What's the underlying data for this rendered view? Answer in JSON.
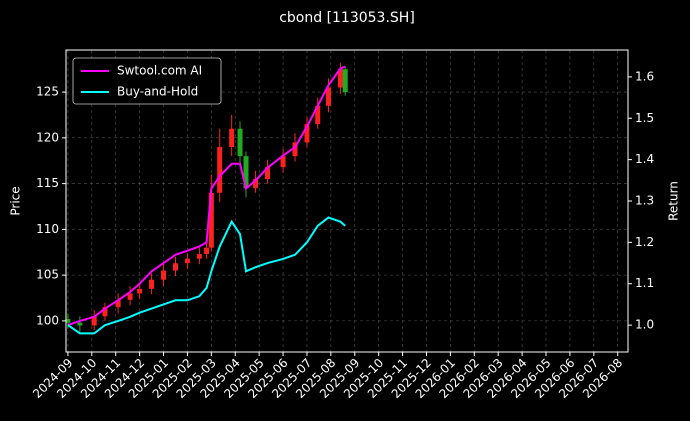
{
  "chart_data": {
    "type": "candlestick",
    "title": "cbond [113053.SH]",
    "ylabel": "Price",
    "y2label": "Return",
    "x": [
      0,
      0.5,
      1.1,
      1.55,
      2.1,
      2.6,
      3,
      3.5,
      4,
      4.5,
      5,
      5.5,
      5.8,
      6,
      6.35,
      6.85,
      7.2,
      7.45,
      7.85,
      8.35,
      9,
      9.5,
      10,
      10.45,
      10.9,
      11.4,
      11.6
    ],
    "open": [
      100.2,
      99.8,
      99.5,
      100.5,
      101.5,
      102.3,
      103,
      103.5,
      104.5,
      105.5,
      106.3,
      106.8,
      107.3,
      108,
      114,
      119,
      121,
      118,
      114.5,
      115.5,
      116.8,
      118,
      119.5,
      121.5,
      123.5,
      125.5,
      127.5
    ],
    "high": [
      100.8,
      100.5,
      101.2,
      102,
      103,
      103.8,
      104.2,
      105.2,
      106.3,
      107,
      107.4,
      108,
      108.6,
      116,
      121,
      122.5,
      121.8,
      118.5,
      116.4,
      117.6,
      118.8,
      120.5,
      122.3,
      124.4,
      126.5,
      128.2,
      127.8
    ],
    "low": [
      99.2,
      98.8,
      99,
      100,
      100.8,
      101.7,
      102.4,
      102.9,
      103.8,
      104.9,
      105.7,
      106.2,
      106.8,
      107.6,
      113,
      118,
      117,
      113.5,
      114,
      115,
      116.2,
      117.4,
      119,
      121,
      122.8,
      124.8,
      124.6
    ],
    "close": [
      99.8,
      99.5,
      100.5,
      101.5,
      102.3,
      103,
      103.5,
      104.5,
      105.5,
      106.3,
      106.8,
      107.3,
      108,
      114,
      119,
      121,
      118,
      114.5,
      115.5,
      116.8,
      118,
      119.5,
      121.5,
      123.5,
      125.5,
      127.5,
      125
    ],
    "up_color": "#ff2020",
    "down_color": "#22aa22",
    "series": [
      {
        "name": "Swtool.com AI",
        "color": "#ff00ff",
        "axis": "y2",
        "values": [
          1,
          1.01,
          1.02,
          1.04,
          1.06,
          1.08,
          1.1,
          1.13,
          1.15,
          1.17,
          1.18,
          1.19,
          1.2,
          1.33,
          1.36,
          1.39,
          1.39,
          1.33,
          1.35,
          1.38,
          1.41,
          1.43,
          1.48,
          1.53,
          1.58,
          1.62,
          1.625
        ]
      },
      {
        "name": "Buy-and-Hold",
        "color": "#00ffff",
        "axis": "y2",
        "values": [
          1,
          0.98,
          0.98,
          1,
          1.01,
          1.02,
          1.03,
          1.04,
          1.05,
          1.06,
          1.06,
          1.07,
          1.09,
          1.13,
          1.19,
          1.25,
          1.22,
          1.13,
          1.14,
          1.15,
          1.16,
          1.17,
          1.2,
          1.24,
          1.26,
          1.25,
          1.24
        ]
      }
    ],
    "xlim": [
      -0.08,
      23.43
    ],
    "xticks": [
      {
        "value": 0,
        "label": "2024-09"
      },
      {
        "value": 1,
        "label": "2024-10"
      },
      {
        "value": 2,
        "label": "2024-11"
      },
      {
        "value": 3,
        "label": "2024-12"
      },
      {
        "value": 4,
        "label": "2025-01"
      },
      {
        "value": 5,
        "label": "2025-02"
      },
      {
        "value": 6,
        "label": "2025-03"
      },
      {
        "value": 7,
        "label": "2025-04"
      },
      {
        "value": 8,
        "label": "2025-05"
      },
      {
        "value": 9,
        "label": "2025-06"
      },
      {
        "value": 10,
        "label": "2025-07"
      },
      {
        "value": 11,
        "label": "2025-08"
      },
      {
        "value": 12,
        "label": "2025-09"
      },
      {
        "value": 13,
        "label": "2025-10"
      },
      {
        "value": 14,
        "label": "2025-11"
      },
      {
        "value": 15,
        "label": "2025-12"
      },
      {
        "value": 16,
        "label": "2026-01"
      },
      {
        "value": 17,
        "label": "2026-02"
      },
      {
        "value": 18,
        "label": "2026-03"
      },
      {
        "value": 19,
        "label": "2026-04"
      },
      {
        "value": 20,
        "label": "2026-05"
      },
      {
        "value": 21,
        "label": "2026-06"
      },
      {
        "value": 22,
        "label": "2026-07"
      },
      {
        "value": 23,
        "label": "2026-08"
      }
    ],
    "ylim": [
      96.6,
      129.6
    ],
    "yticks": [
      100,
      105,
      110,
      115,
      120,
      125
    ],
    "y2lim": [
      0.935,
      1.665
    ],
    "y2ticks": [
      {
        "value": 1,
        "label": "1.0"
      },
      1.1,
      1.2,
      1.3,
      1.4,
      1.5,
      1.6
    ],
    "grid": true,
    "legend": "upper left"
  }
}
